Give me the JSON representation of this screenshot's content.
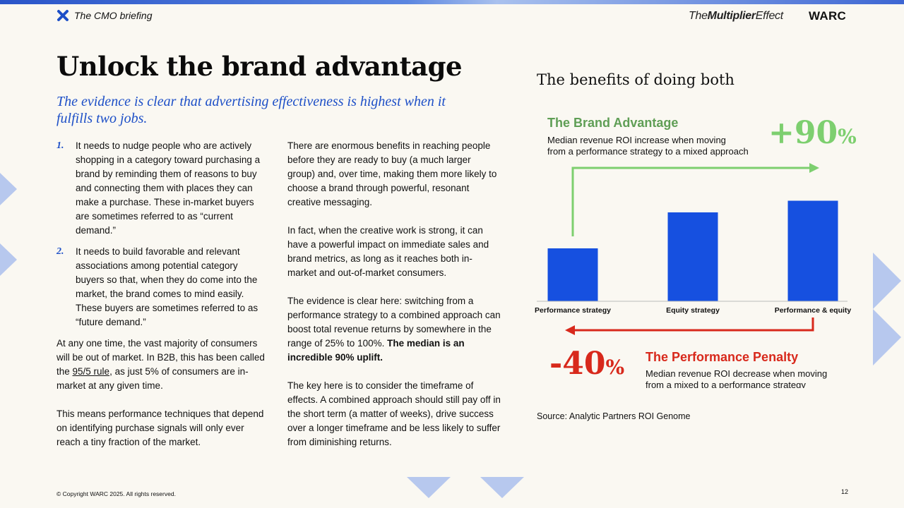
{
  "header": {
    "section_label": "The CMO briefing",
    "brand_prefix": "The",
    "brand_bold": "Multiplier",
    "brand_suffix": "Effect",
    "publisher": "WARC"
  },
  "title": "Unlock the brand advantage",
  "subtitle": "The evidence is clear that advertising effectiveness is highest when it fulfills two jobs.",
  "left_column": {
    "list": [
      {
        "num": "1.",
        "text": "It needs to nudge people who are actively shopping in a category toward purchasing a brand by reminding them of reasons to buy and connecting them with places they can make a purchase. These in-market buyers are sometimes referred to as “current demand.”"
      },
      {
        "num": "2.",
        "text": "It needs to build favorable and relevant associations among potential category buyers so that, when they do come into the market, the brand comes to mind easily. These buyers are sometimes referred to as “future demand.”"
      }
    ],
    "para1_before": "At any one time, the vast majority of consumers will be out of market. In B2B, this has been called the ",
    "para1_link": "95/5 rule",
    "para1_after": ", as just 5% of consumers are in-market at any given time.",
    "para2": "This means performance techniques that depend on identifying purchase signals will only ever reach a tiny fraction of the market."
  },
  "right_column": {
    "para1": "There are enormous benefits in reaching people before they are ready to buy (a much larger group) and, over time, making them more likely to choose a brand through powerful, resonant creative messaging.",
    "para2": "In fact, when the creative work is strong, it can have a powerful impact on immediate sales and brand metrics, as long as it reaches both in-market and out-of-market consumers.",
    "para3_before": "The evidence is clear here: switching from a performance strategy to a combined approach can boost total revenue returns by somewhere in the range of 25% to 100%. ",
    "para3_bold": "The median is an incredible 90% uplift.",
    "para4": "The key here is to consider the timeframe of effects. A combined approach should still pay off in the short term (a matter of weeks), drive success over a longer timeframe and be less likely to suffer from diminishing returns."
  },
  "chart_data": {
    "type": "bar",
    "title": "The benefits of doing both",
    "categories": [
      "Performance strategy",
      "Equity strategy",
      "Performance & equity"
    ],
    "values": [
      1.0,
      1.68,
      1.9
    ],
    "ylim": [
      0,
      2.0
    ],
    "xlabel": "",
    "ylabel": "",
    "brand_advantage": {
      "heading": "The Brand Advantage",
      "desc_line1": "Median revenue ROI increase when moving",
      "desc_line2": "from a performance strategy to a mixed approach",
      "value": "+90",
      "unit": "%"
    },
    "performance_penalty": {
      "heading": "The Performance Penalty",
      "desc_line1": "Median revenue ROI decrease when moving",
      "desc_line2": "from a mixed to a performance strategy",
      "value": "-40",
      "unit": "%"
    },
    "source": "Source: Analytic Partners ROI Genome"
  },
  "colors": {
    "bar": "#1650e0",
    "green": "#7dcf6f",
    "green_text": "#5f9e55",
    "red": "#d8291c",
    "accent_blue": "#1d4fc7",
    "deco": "#b7c8ee"
  },
  "footer": {
    "copyright": "©  Copyright WARC 2025. All rights reserved.",
    "page": "12"
  }
}
